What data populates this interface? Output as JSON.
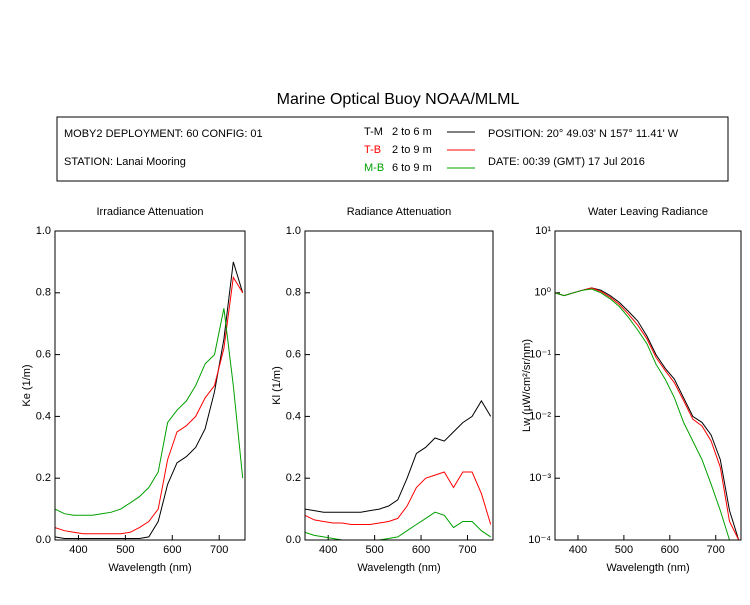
{
  "header": {
    "title": "Marine Optical Buoy NOAA/MLML",
    "deployment": "MOBY2 DEPLOYMENT: 60 CONFIG: 01",
    "station": "STATION: Lanai Mooring",
    "position": "POSITION: 20° 49.03' N   157° 11.41' W",
    "date": "DATE: 00:39 (GMT) 17 Jul 2016"
  },
  "chart_data": [
    {
      "type": "line",
      "title": "Irradiance Attenuation",
      "x_label": "Wavelength (nm)",
      "y_label": "Ke  (1/m)",
      "x": [
        350,
        370,
        390,
        410,
        430,
        450,
        470,
        490,
        510,
        530,
        550,
        570,
        590,
        610,
        630,
        650,
        670,
        690,
        710,
        730,
        750
      ],
      "xlim": [
        350,
        755
      ],
      "xticks": [
        400,
        500,
        600,
        700
      ],
      "ylim": [
        0,
        1
      ],
      "yticks": [
        {
          "value": 0,
          "label": "0.0"
        },
        0.2,
        0.4,
        0.6,
        0.8,
        {
          "value": 1,
          "label": "1.0"
        }
      ],
      "series": [
        {
          "name": "T-M",
          "depth": "2 to 6  m",
          "color": "#000000",
          "values": [
            0.01,
            0.005,
            0.005,
            0.005,
            0.005,
            0.005,
            0.005,
            0.005,
            0.005,
            0.005,
            0.01,
            0.06,
            0.18,
            0.25,
            0.27,
            0.3,
            0.36,
            0.48,
            0.65,
            0.9,
            0.8
          ]
        },
        {
          "name": "T-B",
          "depth": "2 to 9  m",
          "color": "#ff0000",
          "values": [
            0.04,
            0.03,
            0.025,
            0.02,
            0.02,
            0.02,
            0.02,
            0.02,
            0.025,
            0.04,
            0.06,
            0.1,
            0.26,
            0.35,
            0.37,
            0.4,
            0.46,
            0.5,
            0.62,
            0.85,
            0.8
          ]
        },
        {
          "name": "M-B",
          "depth": "6 to 9  m",
          "color": "#00a000",
          "values": [
            0.1,
            0.085,
            0.08,
            0.08,
            0.08,
            0.085,
            0.09,
            0.1,
            0.12,
            0.14,
            0.17,
            0.22,
            0.38,
            0.42,
            0.45,
            0.5,
            0.57,
            0.6,
            0.75,
            0.5,
            0.2
          ]
        }
      ]
    },
    {
      "type": "line",
      "title": "Radiance Attenuation",
      "x_label": "Wavelength (nm)",
      "y_label": "Kl  (1/m)",
      "x": [
        350,
        370,
        390,
        410,
        430,
        450,
        470,
        490,
        510,
        530,
        550,
        570,
        590,
        610,
        630,
        650,
        670,
        690,
        710,
        730,
        750
      ],
      "xlim": [
        350,
        755
      ],
      "xticks": [
        400,
        500,
        600,
        700
      ],
      "ylim": [
        0,
        1
      ],
      "yticks": [
        {
          "value": 0,
          "label": "0.0"
        },
        0.2,
        0.4,
        0.6,
        0.8,
        {
          "value": 1,
          "label": "1.0"
        }
      ],
      "series": [
        {
          "color": "#000000",
          "values": [
            0.1,
            0.095,
            0.09,
            0.09,
            0.09,
            0.09,
            0.09,
            0.095,
            0.1,
            0.11,
            0.13,
            0.2,
            0.28,
            0.3,
            0.33,
            0.32,
            0.35,
            0.38,
            0.4,
            0.45,
            0.4
          ]
        },
        {
          "color": "#ff0000",
          "values": [
            0.08,
            0.065,
            0.06,
            0.055,
            0.055,
            0.05,
            0.05,
            0.05,
            0.055,
            0.06,
            0.07,
            0.11,
            0.17,
            0.2,
            0.21,
            0.22,
            0.17,
            0.22,
            0.22,
            0.15,
            0.05
          ]
        },
        {
          "color": "#00a000",
          "values": [
            0.025,
            0.015,
            0.01,
            0.005,
            0,
            0,
            0,
            0,
            0,
            0.005,
            0.01,
            0.03,
            0.05,
            0.07,
            0.09,
            0.08,
            0.04,
            0.06,
            0.06,
            0.03,
            0.01
          ]
        }
      ]
    },
    {
      "type": "line",
      "title": "Water Leaving Radiance",
      "x_label": "Wavelength (nm)",
      "y_label": "Lw  (µW/cm²/sr/nm)",
      "log": true,
      "x": [
        350,
        370,
        390,
        410,
        430,
        450,
        470,
        490,
        510,
        530,
        550,
        570,
        590,
        610,
        630,
        650,
        670,
        690,
        710,
        730,
        750
      ],
      "xlim": [
        350,
        755
      ],
      "xticks": [
        400,
        500,
        600,
        700
      ],
      "ylim": [
        0.0001,
        10
      ],
      "yticks": [
        {
          "value": 0.0001,
          "label": "10⁻⁴"
        },
        {
          "value": 0.001,
          "label": "10⁻³"
        },
        {
          "value": 0.01,
          "label": "10⁻²"
        },
        {
          "value": 0.1,
          "label": "10⁻¹"
        },
        {
          "value": 1,
          "label": "10⁰"
        },
        {
          "value": 10,
          "label": "10¹"
        }
      ],
      "series": [
        {
          "color": "#000000",
          "values": [
            1.0,
            0.9,
            1.0,
            1.1,
            1.2,
            1.1,
            0.9,
            0.7,
            0.5,
            0.35,
            0.2,
            0.1,
            0.06,
            0.04,
            0.02,
            0.01,
            0.008,
            0.005,
            0.002,
            0.0003,
            0.0001
          ]
        },
        {
          "color": "#ff0000",
          "values": [
            1.0,
            0.9,
            1.0,
            1.1,
            1.2,
            1.05,
            0.85,
            0.65,
            0.45,
            0.3,
            0.18,
            0.09,
            0.055,
            0.035,
            0.018,
            0.009,
            0.007,
            0.004,
            0.0015,
            0.0002,
            0.0001
          ]
        },
        {
          "color": "#00a000",
          "values": [
            1.0,
            0.9,
            1.0,
            1.1,
            1.15,
            1.0,
            0.8,
            0.6,
            0.4,
            0.25,
            0.15,
            0.07,
            0.04,
            0.02,
            0.008,
            0.004,
            0.002,
            0.0008,
            0.0003,
            0.0001,
            null
          ]
        }
      ]
    }
  ]
}
